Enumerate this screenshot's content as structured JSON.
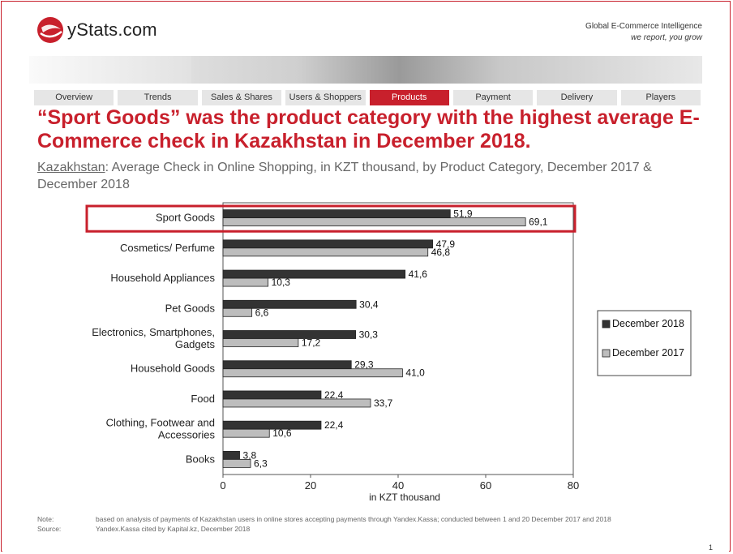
{
  "brand": {
    "logo_text": "yStats.com",
    "tagline_1": "Global E-Commerce Intelligence",
    "tagline_2": "we report, you grow",
    "accent": "#c8202c"
  },
  "nav": {
    "tabs": [
      "Overview",
      "Trends",
      "Sales & Shares",
      "Users & Shoppers",
      "Products",
      "Payment",
      "Delivery",
      "Players"
    ],
    "active": "Products"
  },
  "headline": "“Sport Goods” was the product category with the highest average E-Commerce check in Kazakhstan in December 2018.",
  "subtitle": {
    "country": "Kazakhstan",
    "rest": ": Average Check in Online Shopping, in KZT thousand, by Product Category, December 2017 & December 2018"
  },
  "chart_data": {
    "type": "bar",
    "orientation": "horizontal",
    "categories": [
      [
        "Sport Goods"
      ],
      [
        "Cosmetics/ Perfume"
      ],
      [
        "Household Appliances"
      ],
      [
        "Pet Goods"
      ],
      [
        "Electronics, Smartphones,",
        "Gadgets"
      ],
      [
        "Household Goods"
      ],
      [
        "Food"
      ],
      [
        "Clothing, Footwear and",
        "Accessories"
      ],
      [
        "Books"
      ]
    ],
    "series": [
      {
        "name": "December 2018",
        "color": "#333333",
        "values": [
          51.9,
          47.9,
          41.6,
          30.4,
          30.3,
          29.3,
          22.4,
          22.4,
          3.8
        ],
        "labels": [
          "51,9",
          "47,9",
          "41,6",
          "30,4",
          "30,3",
          "29,3",
          "22,4",
          "22,4",
          "3,8"
        ]
      },
      {
        "name": "December 2017",
        "color": "#bdbdbd",
        "values": [
          69.1,
          46.8,
          10.3,
          6.6,
          17.2,
          41.0,
          33.7,
          10.6,
          6.3
        ],
        "labels": [
          "69,1",
          "46,8",
          "10,3",
          "6,6",
          "17,2",
          "41,0",
          "33,7",
          "10,6",
          "6,3"
        ]
      }
    ],
    "xlim": [
      0,
      80
    ],
    "xticks": [
      0,
      20,
      40,
      60,
      80
    ],
    "xlabel": "in KZT thousand",
    "highlight_category": "Sport Goods",
    "legend_position": "right"
  },
  "notes": {
    "note_label": "Note:",
    "note_text": "based on analysis of payments of Kazakhstan users in online stores accepting payments through Yandex.Kassa; conducted between 1 and 20 December 2017 and 2018",
    "source_label": "Source:",
    "source_text": "Yandex.Kassa cited by Kapital.kz, December 2018"
  },
  "page_number": "1"
}
